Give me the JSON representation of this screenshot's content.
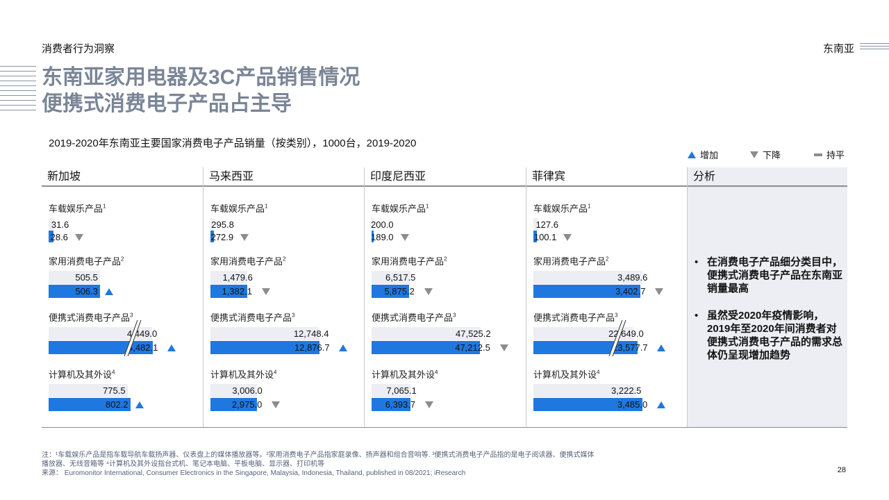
{
  "header": {
    "section": "消费者行为洞察",
    "region": "东南亚"
  },
  "title_line1": "东南亚家用电器及3C产品销售情况",
  "title_line2": "便携式消费电子产品占主导",
  "legend": {
    "up": "增加",
    "down": "下降",
    "flat": "持平"
  },
  "colors": {
    "y2019": "#eceef3",
    "y2020": "#1f78e0",
    "up": "#1f78e0",
    "down": "#8c8c8c"
  },
  "chart_data": {
    "type": "bar",
    "title": "2019-2020年东南亚主要国家消费电子产品销量（按类别），1000台，2019-2020",
    "categories": [
      "车载娱乐产品",
      "家用消费电子产品",
      "便携式消费电子产品",
      "计算机及其外设"
    ],
    "category_superscripts": [
      "1",
      "2",
      "3",
      "4"
    ],
    "panels": [
      {
        "country": "新加坡",
        "y2019": [
          31.6,
          505.5,
          4449.0,
          775.5
        ],
        "y2020": [
          28.6,
          506.3,
          4482.1,
          802.2
        ],
        "y2019_labels": [
          "31.6",
          "505.5",
          "4,449.0",
          "775.5"
        ],
        "y2020_labels": [
          "28.6",
          "506.3",
          "4,482.1",
          "802.2"
        ],
        "trend": [
          "down",
          "up",
          "up",
          "up"
        ],
        "broken": [
          false,
          false,
          true,
          false
        ]
      },
      {
        "country": "马来西亚",
        "y2019": [
          295.8,
          1479.6,
          12748.4,
          3006.0
        ],
        "y2020": [
          272.9,
          1382.1,
          12876.7,
          2975.0
        ],
        "y2019_labels": [
          "295.8",
          "1,479.6",
          "12,748.4",
          "3,006.0"
        ],
        "y2020_labels": [
          "272.9",
          "1,382.1",
          "12,876.7",
          "2,975.0"
        ],
        "trend": [
          "down",
          "down",
          "up",
          "down"
        ],
        "broken": [
          false,
          false,
          false,
          false
        ]
      },
      {
        "country": "印度尼西亚",
        "y2019": [
          200.0,
          6517.5,
          47525.2,
          7065.1
        ],
        "y2020": [
          189.0,
          5875.2,
          47212.5,
          6393.7
        ],
        "y2019_labels": [
          "200.0",
          "6,517.5",
          "47,525.2",
          "7,065.1"
        ],
        "y2020_labels": [
          "189.0",
          "5,875.2",
          "47,212.5",
          "6,393.7"
        ],
        "trend": [
          "down",
          "down",
          "down",
          "down"
        ],
        "broken": [
          false,
          false,
          false,
          false
        ]
      },
      {
        "country": "菲律宾",
        "y2019": [
          127.6,
          3489.6,
          22649.0,
          3222.5
        ],
        "y2020": [
          100.1,
          3402.7,
          23577.7,
          3485.0
        ],
        "y2019_labels": [
          "127.6",
          "3,489.6",
          "22,649.0",
          "3,222.5"
        ],
        "y2020_labels": [
          "100.1",
          "3,402.7",
          "23,577.7",
          "3,485.0"
        ],
        "trend": [
          "down",
          "down",
          "up",
          "up"
        ],
        "broken": [
          false,
          false,
          true,
          false
        ]
      }
    ]
  },
  "analysis": {
    "header": "分析",
    "points": [
      "在消费电子产品细分类目中，便携式消费电子产品在东南亚销量最高",
      "虽然受2020年疫情影响，2019年至2020年间消费者对便携式消费电子产品的需求总体仍呈现增加趋势"
    ]
  },
  "footnote": {
    "line1": "注：¹车载娱乐产品是指车载导航车载扬声器、仪表盘上的媒体播放器等。²家用消费电子产品指家庭录像、扬声器和组合音响等. ³便携式消费电子产品指的是电子阅读器、便携式媒体播放器、无线音箱等 ⁴计算机及其外设指台式机、笔记本电脑、平板电脑、显示器、打印机等",
    "line2": "来源：  Euromonitor International, Consumer Electronics in the Singapore, Malaysia, Indonesia, Thailand,  published in 08/2021; iResearch"
  },
  "page_number": "28"
}
